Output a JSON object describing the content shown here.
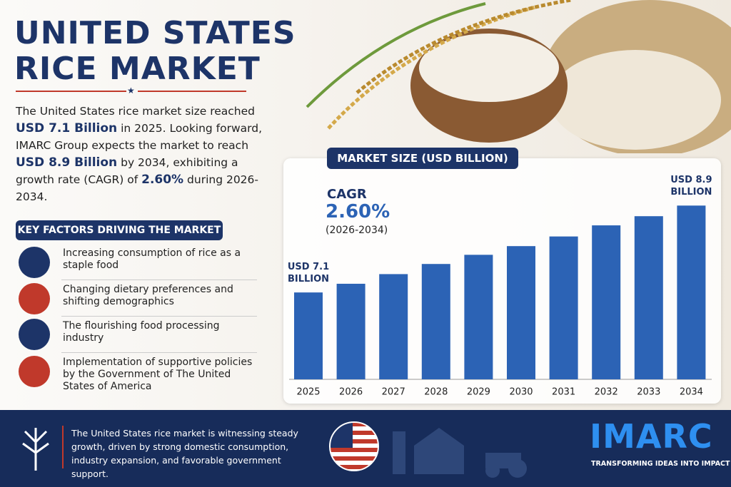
{
  "header": {
    "title_line1": "UNITED STATES",
    "title_line2": "RICE MARKET"
  },
  "intro": {
    "parts": [
      "The United States rice market size reached",
      "USD 7.1 Billion",
      "in 2025.",
      "Looking forward, IMARC Group expects the market to reach",
      "USD 8.9 Billion",
      "by 2034, exhibiting a growth rate (CAGR) of",
      "2.60%",
      "during 2026-2034."
    ]
  },
  "factors": {
    "title": "KEY FACTORS DRIVING THE MARKET",
    "items": [
      "Increasing consumption of rice as a staple food",
      "Changing dietary preferences and shifting demographics",
      "The flourishing food processing industry",
      "Implementation of supportive policies by the Government of The United States of America"
    ]
  },
  "footer": {
    "text": "The United States rice market is witnessing steady growth, driven by strong domestic consumption, industry expansion, and favorable government support.",
    "brand": "IMARC",
    "tagline": "TRANSFORMING IDEAS INTO IMPACT"
  },
  "chart_data": {
    "type": "bar",
    "title": "MARKET SIZE (USD BILLION)",
    "categories": [
      "2025",
      "2026",
      "2027",
      "2028",
      "2029",
      "2030",
      "2031",
      "2032",
      "2033",
      "2034"
    ],
    "values": [
      7.1,
      7.28,
      7.48,
      7.69,
      7.88,
      8.06,
      8.26,
      8.49,
      8.68,
      8.9
    ],
    "value_labels": [
      "USD 7.1 BILLION",
      null,
      null,
      null,
      null,
      null,
      null,
      null,
      null,
      "USD 8.9 BILLION"
    ],
    "color": "#2c63b5",
    "ylim": [
      5.3,
      9.2
    ],
    "annotations": {
      "label": "CAGR",
      "value": "2.60%",
      "period": "(2026-2034)"
    }
  }
}
